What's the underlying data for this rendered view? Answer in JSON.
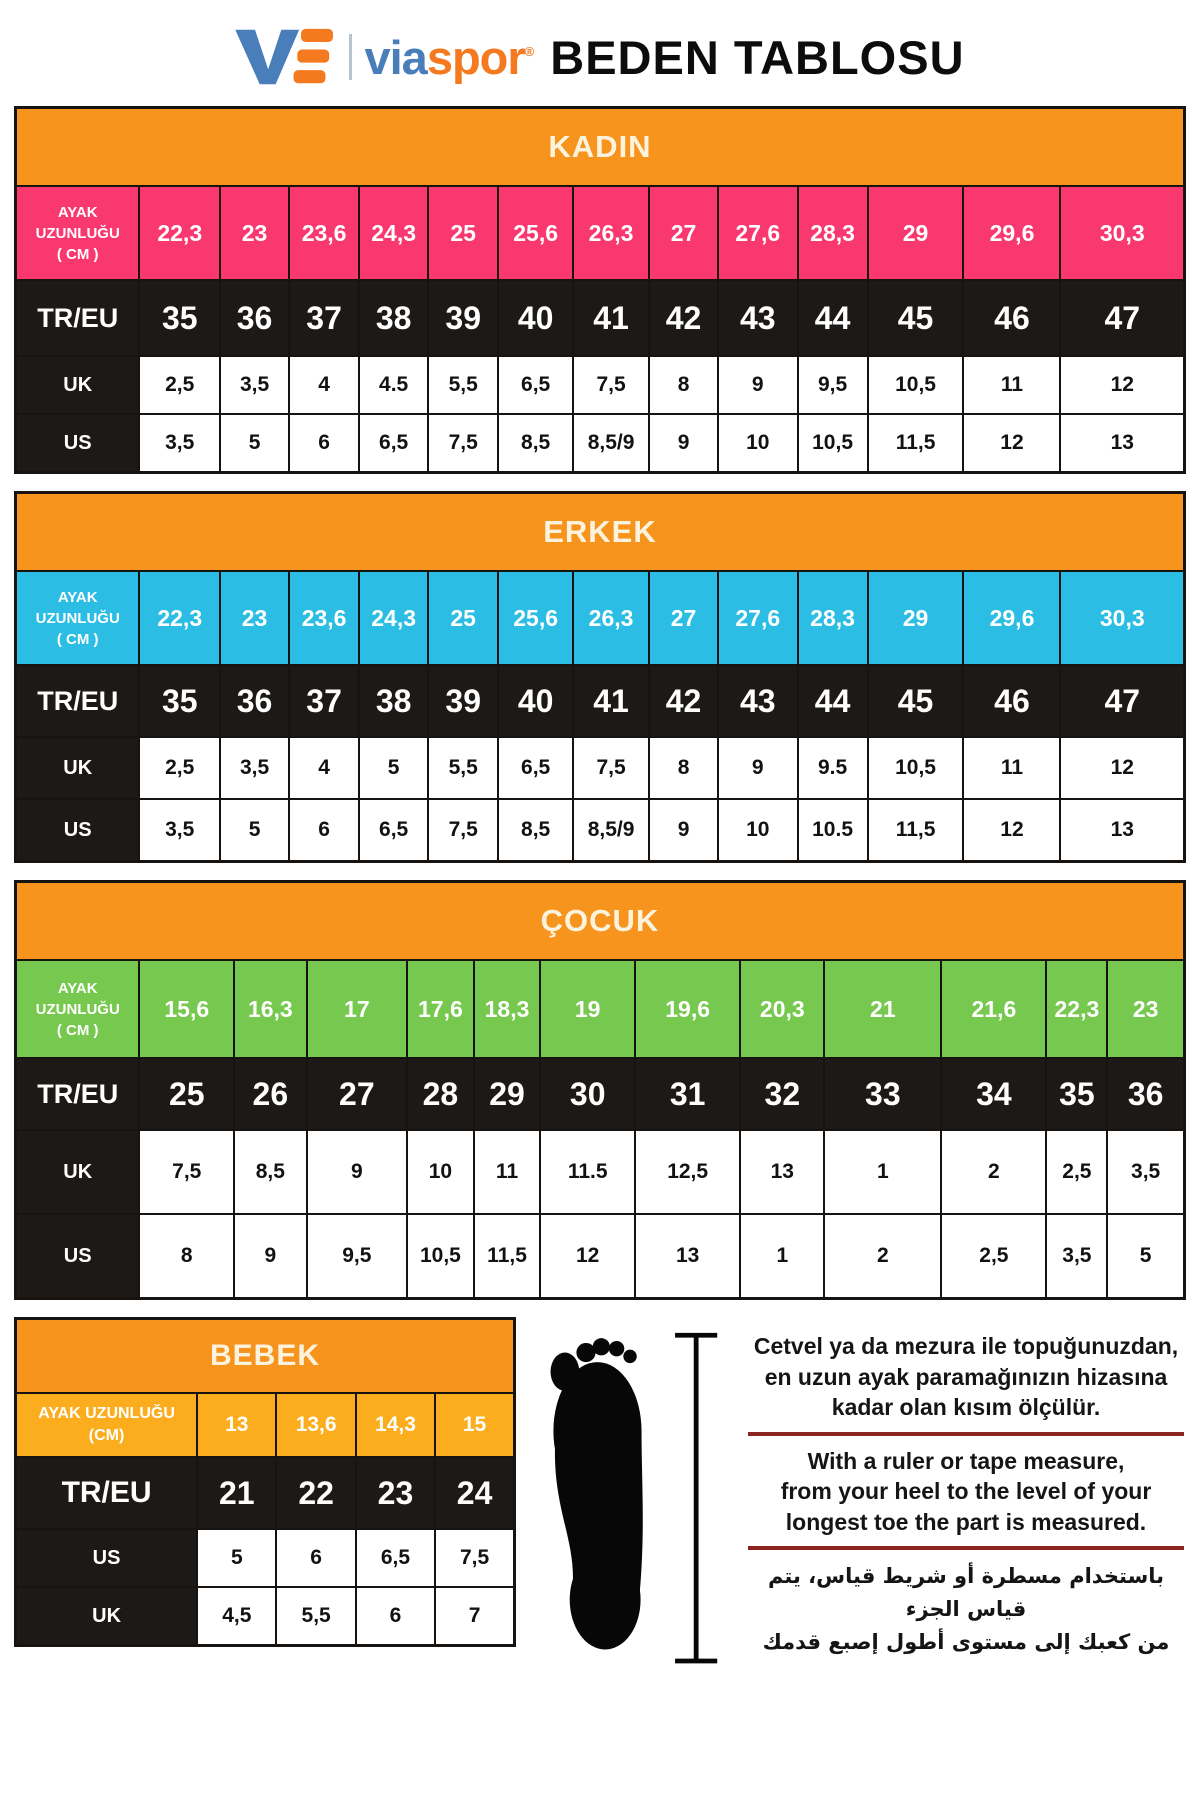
{
  "header": {
    "brand_mark": "VS",
    "brand_blue": "via",
    "brand_orange": "spor",
    "registered": "®",
    "title": "BEDEN TABLOSU"
  },
  "colors": {
    "header_orange": "#F7941D",
    "women_pink": "#F9386F",
    "men_cyan": "#2BBDE4",
    "kids_green": "#76C84E",
    "baby_amber": "#FBAD1D",
    "row_black": "#1C1916",
    "underline_red": "#8B2320",
    "logo_blue": "#4A7EBB",
    "logo_orange": "#F4791F"
  },
  "tables": [
    {
      "id": "kadin",
      "title": "KADIN",
      "accent": "#F9386F",
      "foot_label_lines": [
        "AYAK",
        "UZUNLUĞU",
        "( CM )"
      ],
      "foot_lengths": [
        "22,3",
        "23",
        "23,6",
        "24,3",
        "25",
        "25,6",
        "26,3",
        "27",
        "27,6",
        "28,3",
        "29",
        "29,6",
        "30,3"
      ],
      "rows": [
        {
          "label": "TR/EU",
          "style": "dark",
          "values": [
            "35",
            "36",
            "37",
            "38",
            "39",
            "40",
            "41",
            "42",
            "43",
            "44",
            "45",
            "46",
            "47"
          ]
        },
        {
          "label": "UK",
          "style": "light",
          "values": [
            "2,5",
            "3,5",
            "4",
            "4.5",
            "5,5",
            "6,5",
            "7,5",
            "8",
            "9",
            "9,5",
            "10,5",
            "11",
            "12"
          ]
        },
        {
          "label": "US",
          "style": "light",
          "values": [
            "3,5",
            "5",
            "6",
            "6,5",
            "7,5",
            "8,5",
            "8,5/9",
            "9",
            "10",
            "10,5",
            "11,5",
            "12",
            "13"
          ]
        }
      ]
    },
    {
      "id": "erkek",
      "title": "ERKEK",
      "accent": "#2BBDE4",
      "foot_label_lines": [
        "AYAK",
        "UZUNLUĞU",
        "( CM )"
      ],
      "foot_lengths": [
        "22,3",
        "23",
        "23,6",
        "24,3",
        "25",
        "25,6",
        "26,3",
        "27",
        "27,6",
        "28,3",
        "29",
        "29,6",
        "30,3"
      ],
      "rows": [
        {
          "label": "TR/EU",
          "style": "dark",
          "values": [
            "35",
            "36",
            "37",
            "38",
            "39",
            "40",
            "41",
            "42",
            "43",
            "44",
            "45",
            "46",
            "47"
          ]
        },
        {
          "label": "UK",
          "style": "light",
          "values": [
            "2,5",
            "3,5",
            "4",
            "5",
            "5,5",
            "6,5",
            "7,5",
            "8",
            "9",
            "9.5",
            "10,5",
            "11",
            "12"
          ]
        },
        {
          "label": "US",
          "style": "light",
          "values": [
            "3,5",
            "5",
            "6",
            "6,5",
            "7,5",
            "8,5",
            "8,5/9",
            "9",
            "10",
            "10.5",
            "11,5",
            "12",
            "13"
          ]
        }
      ]
    },
    {
      "id": "cocuk",
      "title": "ÇOCUK",
      "accent": "#76C84E",
      "foot_label_lines": [
        "AYAK",
        "UZUNLUĞU",
        "( CM )"
      ],
      "foot_lengths": [
        "15,6",
        "16,3",
        "17",
        "17,6",
        "18,3",
        "19",
        "19,6",
        "20,3",
        "21",
        "21,6",
        "22,3",
        "23"
      ],
      "rows": [
        {
          "label": "TR/EU",
          "style": "dark",
          "values": [
            "25",
            "26",
            "27",
            "28",
            "29",
            "30",
            "31",
            "32",
            "33",
            "34",
            "35",
            "36"
          ]
        },
        {
          "label": "UK",
          "style": "light",
          "values": [
            "7,5",
            "8,5",
            "9",
            "10",
            "11",
            "11.5",
            "12,5",
            "13",
            "1",
            "2",
            "2,5",
            "3,5"
          ]
        },
        {
          "label": "US",
          "style": "light",
          "values": [
            "8",
            "9",
            "9,5",
            "10,5",
            "11,5",
            "12",
            "13",
            "1",
            "2",
            "2,5",
            "3,5",
            "5"
          ]
        }
      ]
    },
    {
      "id": "bebek",
      "title": "BEBEK",
      "accent": "#FBAD1D",
      "foot_label_lines": [
        "AYAK UZUNLUĞU",
        "(CM)"
      ],
      "foot_lengths": [
        "13",
        "13,6",
        "14,3",
        "15"
      ],
      "rows": [
        {
          "label": "TR/EU",
          "style": "dark",
          "values": [
            "21",
            "22",
            "23",
            "24"
          ]
        },
        {
          "label": "US",
          "style": "light",
          "values": [
            "5",
            "6",
            "6,5",
            "7,5"
          ]
        },
        {
          "label": "UK",
          "style": "light",
          "values": [
            "4,5",
            "5,5",
            "6",
            "7"
          ]
        }
      ]
    }
  ],
  "instructions": {
    "turkish": [
      "Cetvel ya da mezura ile topuğunuzdan,",
      "en uzun ayak paramağınızın hizasına",
      "kadar olan kısım ölçülür."
    ],
    "english": [
      "With a ruler or tape measure,",
      "from your heel to the level of your",
      "longest toe the part is measured."
    ],
    "arabic": [
      "باستخدام مسطرة أو شريط قياس، يتم قياس الجزء",
      "من كعبك إلى مستوى أطول إصبع قدمك"
    ]
  }
}
